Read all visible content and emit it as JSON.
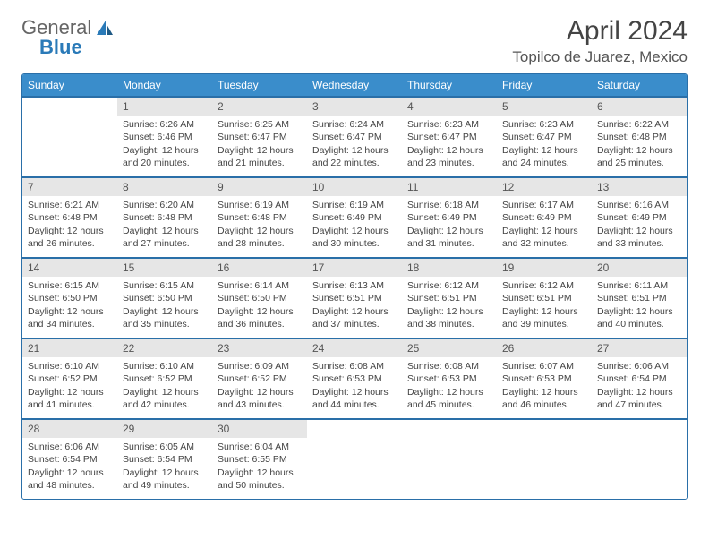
{
  "logo": {
    "text1": "General",
    "text2": "Blue"
  },
  "title": "April 2024",
  "location": "Topilco de Juarez, Mexico",
  "colors": {
    "header_bg": "#3a8dcb",
    "header_text": "#ffffff",
    "border": "#2a6fa8",
    "daynum_bg": "#e6e6e6",
    "text": "#444444",
    "logo_accent": "#2a7ab8",
    "background": "#ffffff"
  },
  "day_headers": [
    "Sunday",
    "Monday",
    "Tuesday",
    "Wednesday",
    "Thursday",
    "Friday",
    "Saturday"
  ],
  "weeks": [
    [
      {
        "num": "",
        "sunrise": "",
        "sunset": "",
        "daylight": ""
      },
      {
        "num": "1",
        "sunrise": "Sunrise: 6:26 AM",
        "sunset": "Sunset: 6:46 PM",
        "daylight": "Daylight: 12 hours and 20 minutes."
      },
      {
        "num": "2",
        "sunrise": "Sunrise: 6:25 AM",
        "sunset": "Sunset: 6:47 PM",
        "daylight": "Daylight: 12 hours and 21 minutes."
      },
      {
        "num": "3",
        "sunrise": "Sunrise: 6:24 AM",
        "sunset": "Sunset: 6:47 PM",
        "daylight": "Daylight: 12 hours and 22 minutes."
      },
      {
        "num": "4",
        "sunrise": "Sunrise: 6:23 AM",
        "sunset": "Sunset: 6:47 PM",
        "daylight": "Daylight: 12 hours and 23 minutes."
      },
      {
        "num": "5",
        "sunrise": "Sunrise: 6:23 AM",
        "sunset": "Sunset: 6:47 PM",
        "daylight": "Daylight: 12 hours and 24 minutes."
      },
      {
        "num": "6",
        "sunrise": "Sunrise: 6:22 AM",
        "sunset": "Sunset: 6:48 PM",
        "daylight": "Daylight: 12 hours and 25 minutes."
      }
    ],
    [
      {
        "num": "7",
        "sunrise": "Sunrise: 6:21 AM",
        "sunset": "Sunset: 6:48 PM",
        "daylight": "Daylight: 12 hours and 26 minutes."
      },
      {
        "num": "8",
        "sunrise": "Sunrise: 6:20 AM",
        "sunset": "Sunset: 6:48 PM",
        "daylight": "Daylight: 12 hours and 27 minutes."
      },
      {
        "num": "9",
        "sunrise": "Sunrise: 6:19 AM",
        "sunset": "Sunset: 6:48 PM",
        "daylight": "Daylight: 12 hours and 28 minutes."
      },
      {
        "num": "10",
        "sunrise": "Sunrise: 6:19 AM",
        "sunset": "Sunset: 6:49 PM",
        "daylight": "Daylight: 12 hours and 30 minutes."
      },
      {
        "num": "11",
        "sunrise": "Sunrise: 6:18 AM",
        "sunset": "Sunset: 6:49 PM",
        "daylight": "Daylight: 12 hours and 31 minutes."
      },
      {
        "num": "12",
        "sunrise": "Sunrise: 6:17 AM",
        "sunset": "Sunset: 6:49 PM",
        "daylight": "Daylight: 12 hours and 32 minutes."
      },
      {
        "num": "13",
        "sunrise": "Sunrise: 6:16 AM",
        "sunset": "Sunset: 6:49 PM",
        "daylight": "Daylight: 12 hours and 33 minutes."
      }
    ],
    [
      {
        "num": "14",
        "sunrise": "Sunrise: 6:15 AM",
        "sunset": "Sunset: 6:50 PM",
        "daylight": "Daylight: 12 hours and 34 minutes."
      },
      {
        "num": "15",
        "sunrise": "Sunrise: 6:15 AM",
        "sunset": "Sunset: 6:50 PM",
        "daylight": "Daylight: 12 hours and 35 minutes."
      },
      {
        "num": "16",
        "sunrise": "Sunrise: 6:14 AM",
        "sunset": "Sunset: 6:50 PM",
        "daylight": "Daylight: 12 hours and 36 minutes."
      },
      {
        "num": "17",
        "sunrise": "Sunrise: 6:13 AM",
        "sunset": "Sunset: 6:51 PM",
        "daylight": "Daylight: 12 hours and 37 minutes."
      },
      {
        "num": "18",
        "sunrise": "Sunrise: 6:12 AM",
        "sunset": "Sunset: 6:51 PM",
        "daylight": "Daylight: 12 hours and 38 minutes."
      },
      {
        "num": "19",
        "sunrise": "Sunrise: 6:12 AM",
        "sunset": "Sunset: 6:51 PM",
        "daylight": "Daylight: 12 hours and 39 minutes."
      },
      {
        "num": "20",
        "sunrise": "Sunrise: 6:11 AM",
        "sunset": "Sunset: 6:51 PM",
        "daylight": "Daylight: 12 hours and 40 minutes."
      }
    ],
    [
      {
        "num": "21",
        "sunrise": "Sunrise: 6:10 AM",
        "sunset": "Sunset: 6:52 PM",
        "daylight": "Daylight: 12 hours and 41 minutes."
      },
      {
        "num": "22",
        "sunrise": "Sunrise: 6:10 AM",
        "sunset": "Sunset: 6:52 PM",
        "daylight": "Daylight: 12 hours and 42 minutes."
      },
      {
        "num": "23",
        "sunrise": "Sunrise: 6:09 AM",
        "sunset": "Sunset: 6:52 PM",
        "daylight": "Daylight: 12 hours and 43 minutes."
      },
      {
        "num": "24",
        "sunrise": "Sunrise: 6:08 AM",
        "sunset": "Sunset: 6:53 PM",
        "daylight": "Daylight: 12 hours and 44 minutes."
      },
      {
        "num": "25",
        "sunrise": "Sunrise: 6:08 AM",
        "sunset": "Sunset: 6:53 PM",
        "daylight": "Daylight: 12 hours and 45 minutes."
      },
      {
        "num": "26",
        "sunrise": "Sunrise: 6:07 AM",
        "sunset": "Sunset: 6:53 PM",
        "daylight": "Daylight: 12 hours and 46 minutes."
      },
      {
        "num": "27",
        "sunrise": "Sunrise: 6:06 AM",
        "sunset": "Sunset: 6:54 PM",
        "daylight": "Daylight: 12 hours and 47 minutes."
      }
    ],
    [
      {
        "num": "28",
        "sunrise": "Sunrise: 6:06 AM",
        "sunset": "Sunset: 6:54 PM",
        "daylight": "Daylight: 12 hours and 48 minutes."
      },
      {
        "num": "29",
        "sunrise": "Sunrise: 6:05 AM",
        "sunset": "Sunset: 6:54 PM",
        "daylight": "Daylight: 12 hours and 49 minutes."
      },
      {
        "num": "30",
        "sunrise": "Sunrise: 6:04 AM",
        "sunset": "Sunset: 6:55 PM",
        "daylight": "Daylight: 12 hours and 50 minutes."
      },
      {
        "num": "",
        "sunrise": "",
        "sunset": "",
        "daylight": ""
      },
      {
        "num": "",
        "sunrise": "",
        "sunset": "",
        "daylight": ""
      },
      {
        "num": "",
        "sunrise": "",
        "sunset": "",
        "daylight": ""
      },
      {
        "num": "",
        "sunrise": "",
        "sunset": "",
        "daylight": ""
      }
    ]
  ]
}
